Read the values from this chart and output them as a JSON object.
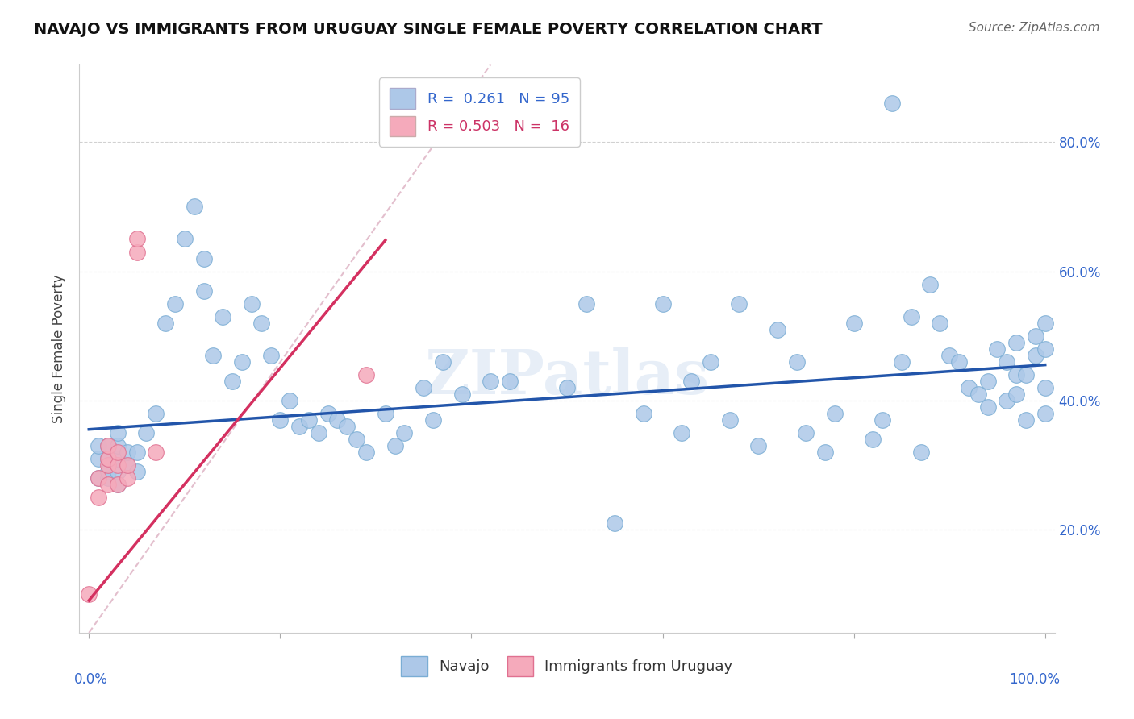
{
  "title": "NAVAJO VS IMMIGRANTS FROM URUGUAY SINGLE FEMALE POVERTY CORRELATION CHART",
  "source": "Source: ZipAtlas.com",
  "ylabel": "Single Female Poverty",
  "ytick_labels": [
    "20.0%",
    "40.0%",
    "60.0%",
    "80.0%"
  ],
  "ytick_values": [
    0.2,
    0.4,
    0.6,
    0.8
  ],
  "xlim": [
    -0.01,
    1.01
  ],
  "ylim": [
    0.04,
    0.92
  ],
  "navajo_R": "0.261",
  "navajo_N": "95",
  "uruguay_R": "0.503",
  "uruguay_N": "16",
  "watermark": "ZIPatlas",
  "navajo_color": "#adc8e8",
  "navajo_edge": "#7aadd4",
  "uruguay_color": "#f5aabb",
  "uruguay_edge": "#e07090",
  "trend_navajo_color": "#2255aa",
  "trend_uruguay_color": "#d43060",
  "diag_color": "#e0b8c8",
  "navajo_x": [
    0.01,
    0.01,
    0.01,
    0.02,
    0.02,
    0.02,
    0.02,
    0.03,
    0.03,
    0.03,
    0.03,
    0.03,
    0.04,
    0.04,
    0.05,
    0.05,
    0.06,
    0.07,
    0.08,
    0.09,
    0.1,
    0.11,
    0.12,
    0.12,
    0.13,
    0.14,
    0.15,
    0.16,
    0.17,
    0.18,
    0.19,
    0.2,
    0.21,
    0.22,
    0.23,
    0.24,
    0.25,
    0.26,
    0.27,
    0.28,
    0.29,
    0.31,
    0.32,
    0.33,
    0.35,
    0.36,
    0.37,
    0.39,
    0.42,
    0.44,
    0.5,
    0.52,
    0.55,
    0.58,
    0.6,
    0.62,
    0.63,
    0.65,
    0.67,
    0.68,
    0.7,
    0.72,
    0.74,
    0.75,
    0.77,
    0.78,
    0.8,
    0.82,
    0.83,
    0.84,
    0.85,
    0.86,
    0.87,
    0.88,
    0.89,
    0.9,
    0.91,
    0.92,
    0.93,
    0.94,
    0.94,
    0.95,
    0.96,
    0.96,
    0.97,
    0.97,
    0.97,
    0.98,
    0.98,
    0.99,
    0.99,
    1.0,
    1.0,
    1.0,
    1.0
  ],
  "navajo_y": [
    0.28,
    0.31,
    0.33,
    0.28,
    0.29,
    0.31,
    0.33,
    0.27,
    0.29,
    0.31,
    0.33,
    0.35,
    0.3,
    0.32,
    0.29,
    0.32,
    0.35,
    0.38,
    0.52,
    0.55,
    0.65,
    0.7,
    0.57,
    0.62,
    0.47,
    0.53,
    0.43,
    0.46,
    0.55,
    0.52,
    0.47,
    0.37,
    0.4,
    0.36,
    0.37,
    0.35,
    0.38,
    0.37,
    0.36,
    0.34,
    0.32,
    0.38,
    0.33,
    0.35,
    0.42,
    0.37,
    0.46,
    0.41,
    0.43,
    0.43,
    0.42,
    0.55,
    0.21,
    0.38,
    0.55,
    0.35,
    0.43,
    0.46,
    0.37,
    0.55,
    0.33,
    0.51,
    0.46,
    0.35,
    0.32,
    0.38,
    0.52,
    0.34,
    0.37,
    0.86,
    0.46,
    0.53,
    0.32,
    0.58,
    0.52,
    0.47,
    0.46,
    0.42,
    0.41,
    0.39,
    0.43,
    0.48,
    0.4,
    0.46,
    0.49,
    0.41,
    0.44,
    0.37,
    0.44,
    0.47,
    0.5,
    0.38,
    0.42,
    0.48,
    0.52
  ],
  "uruguay_x": [
    0.0,
    0.01,
    0.01,
    0.02,
    0.02,
    0.02,
    0.02,
    0.03,
    0.03,
    0.03,
    0.04,
    0.04,
    0.05,
    0.05,
    0.07,
    0.29
  ],
  "uruguay_y": [
    0.1,
    0.25,
    0.28,
    0.27,
    0.3,
    0.31,
    0.33,
    0.27,
    0.3,
    0.32,
    0.28,
    0.3,
    0.63,
    0.65,
    0.32,
    0.44
  ]
}
